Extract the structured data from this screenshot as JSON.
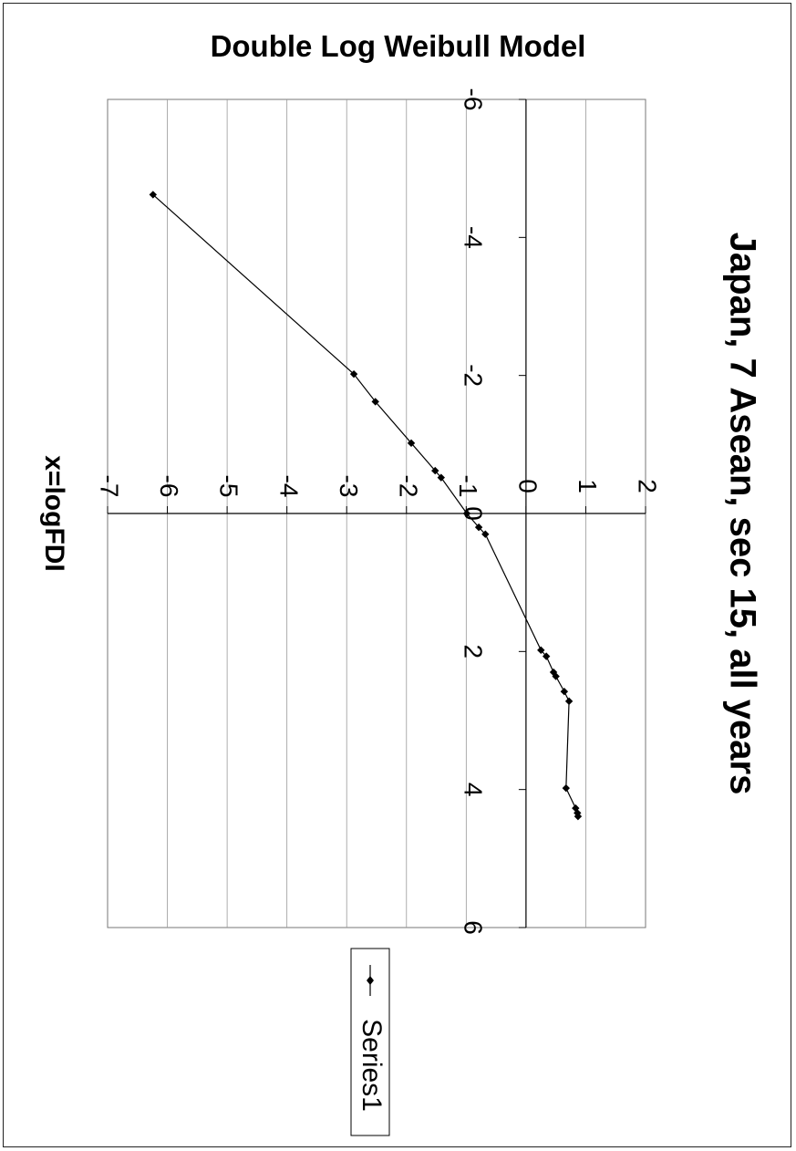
{
  "page": {
    "header_title": "Double Log Weibull Model"
  },
  "chart_data": {
    "type": "line",
    "orientation": "rotated 90 degrees clockwise",
    "title": "Japan, 7 Asean, sec 15, all years",
    "xlabel": "x=logFDI",
    "ylabel": "",
    "xlim": [
      -6,
      6
    ],
    "ylim": [
      -7,
      2
    ],
    "x_ticks": [
      "-6",
      "-4",
      "-2",
      "0",
      "2",
      "4",
      "6"
    ],
    "y_ticks": [
      "-7",
      "-6",
      "-5",
      "-4",
      "-3",
      "-2",
      "-1",
      "0",
      "1",
      "2"
    ],
    "grid": true,
    "legend_position": "bottom (right side of rotated chart)",
    "series": [
      {
        "name": "Series1",
        "marker": "diamond",
        "color": "#000000",
        "x": [
          -4.62,
          -2.02,
          -1.62,
          -1.02,
          -0.62,
          -0.52,
          0.0,
          0.2,
          0.3,
          1.98,
          2.07,
          2.3,
          2.36,
          2.58,
          2.72,
          3.98,
          4.27,
          4.34,
          4.39
        ],
        "y": [
          -6.24,
          -2.88,
          -2.52,
          -1.92,
          -1.52,
          -1.42,
          -0.99,
          -0.79,
          -0.68,
          0.25,
          0.34,
          0.46,
          0.5,
          0.64,
          0.72,
          0.67,
          0.83,
          0.86,
          0.87
        ]
      }
    ]
  }
}
